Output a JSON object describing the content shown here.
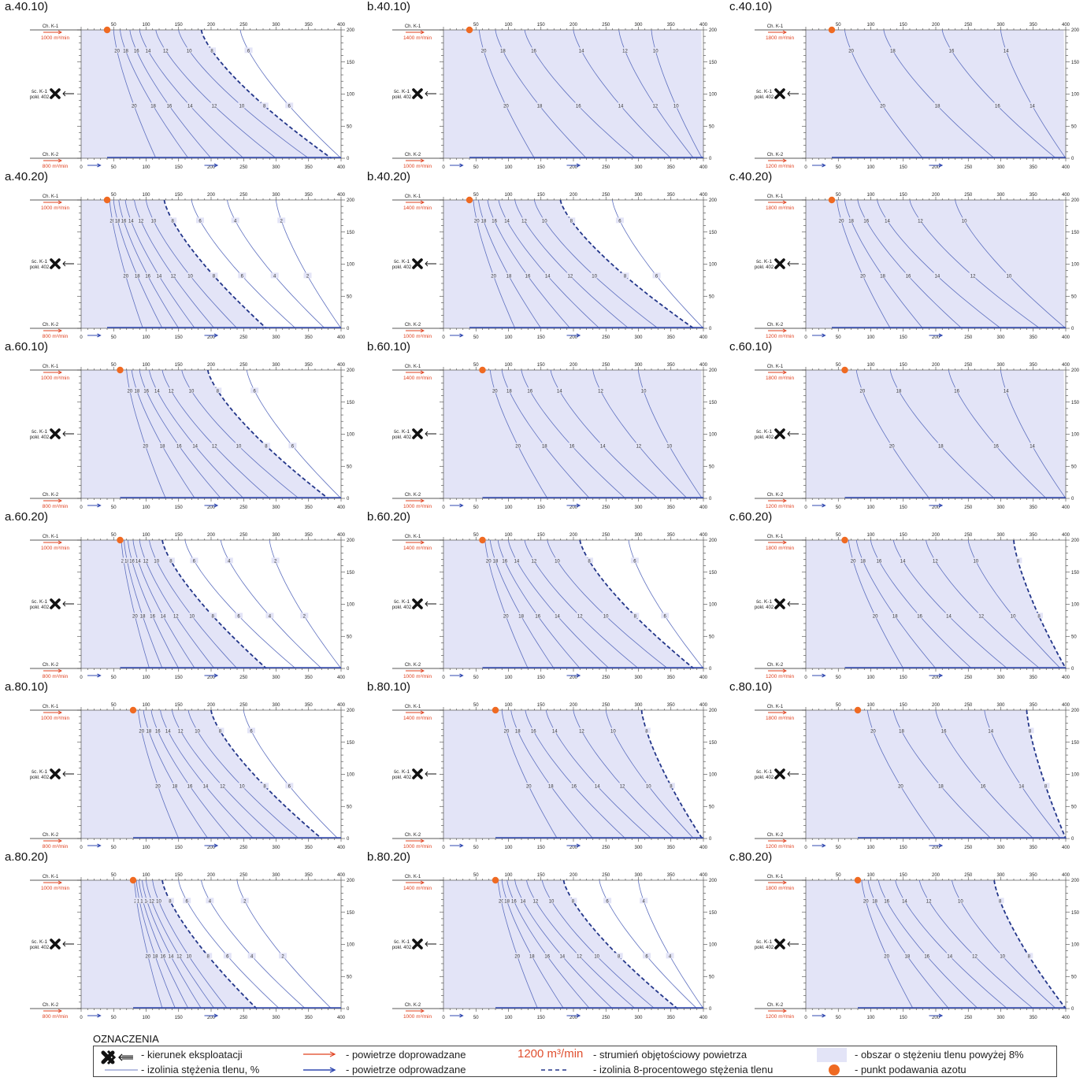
{
  "labels": {
    "ch_k1": "Ch. K-1",
    "ch_k2": "Ch. K-2",
    "wall_line1": "śc. K-1",
    "wall_line2": "pokł. 402",
    "flow_unit": "m³/min"
  },
  "chart_data": [
    {
      "id": "a.40.10",
      "type": "contour",
      "title": "a.40.10)",
      "inflow": 1000,
      "outflow": 800,
      "injection_x": 40,
      "xlim": [
        0,
        400
      ],
      "ylim": [
        0,
        200
      ],
      "isolines": [
        {
          "v": 20,
          "x_top": 50,
          "x_bot": 115
        },
        {
          "v": 18,
          "x_top": 60,
          "x_bot": 165
        },
        {
          "v": 16,
          "x_top": 75,
          "x_bot": 200
        },
        {
          "v": 14,
          "x_top": 90,
          "x_bot": 250
        },
        {
          "v": 12,
          "x_top": 115,
          "x_bot": 300
        },
        {
          "v": 10,
          "x_top": 150,
          "x_bot": 350
        },
        {
          "v": 8,
          "x_top": 185,
          "x_bot": 385,
          "dashed": true
        },
        {
          "v": 6,
          "x_top": 245,
          "x_bot": 400
        }
      ]
    },
    {
      "id": "b.40.10",
      "type": "contour",
      "title": "b.40.10)",
      "inflow": 1400,
      "outflow": 1000,
      "injection_x": 40,
      "xlim": [
        0,
        400
      ],
      "ylim": [
        0,
        200
      ],
      "isolines": [
        {
          "v": 20,
          "x_top": 55,
          "x_bot": 140
        },
        {
          "v": 18,
          "x_top": 80,
          "x_bot": 220
        },
        {
          "v": 16,
          "x_top": 125,
          "x_bot": 295
        },
        {
          "v": 14,
          "x_top": 200,
          "x_bot": 350
        },
        {
          "v": 12,
          "x_top": 270,
          "x_bot": 385
        },
        {
          "v": 10,
          "x_top": 320,
          "x_bot": 398
        }
      ]
    },
    {
      "id": "c.40.10",
      "type": "contour",
      "title": "c.40.10)",
      "inflow": 1800,
      "outflow": 1200,
      "injection_x": 40,
      "xlim": [
        0,
        400
      ],
      "ylim": [
        0,
        200
      ],
      "isolines": [
        {
          "v": 20,
          "x_top": 60,
          "x_bot": 180
        },
        {
          "v": 18,
          "x_top": 120,
          "x_bot": 290
        },
        {
          "v": 16,
          "x_top": 210,
          "x_bot": 385
        },
        {
          "v": 14,
          "x_top": 300,
          "x_bot": 400
        }
      ]
    },
    {
      "id": "a.40.20",
      "type": "contour",
      "title": "a.40.20)",
      "inflow": 1000,
      "outflow": 800,
      "injection_x": 40,
      "xlim": [
        0,
        400
      ],
      "ylim": [
        0,
        200
      ],
      "isolines": [
        {
          "v": 20,
          "x_top": 44,
          "x_bot": 95
        },
        {
          "v": 18,
          "x_top": 50,
          "x_bot": 125
        },
        {
          "v": 16,
          "x_top": 58,
          "x_bot": 150
        },
        {
          "v": 14,
          "x_top": 68,
          "x_bot": 175
        },
        {
          "v": 12,
          "x_top": 82,
          "x_bot": 205
        },
        {
          "v": 10,
          "x_top": 100,
          "x_bot": 240
        },
        {
          "v": 8,
          "x_top": 128,
          "x_bot": 285,
          "dashed": true
        },
        {
          "v": 6,
          "x_top": 170,
          "x_bot": 330
        },
        {
          "v": 4,
          "x_top": 225,
          "x_bot": 375
        },
        {
          "v": 2,
          "x_top": 300,
          "x_bot": 400
        }
      ]
    },
    {
      "id": "b.40.20",
      "type": "contour",
      "title": "b.40.20)",
      "inflow": 1400,
      "outflow": 1000,
      "injection_x": 40,
      "xlim": [
        0,
        400
      ],
      "ylim": [
        0,
        200
      ],
      "isolines": [
        {
          "v": 20,
          "x_top": 46,
          "x_bot": 110
        },
        {
          "v": 18,
          "x_top": 54,
          "x_bot": 150
        },
        {
          "v": 16,
          "x_top": 68,
          "x_bot": 195
        },
        {
          "v": 14,
          "x_top": 85,
          "x_bot": 240
        },
        {
          "v": 12,
          "x_top": 110,
          "x_bot": 285
        },
        {
          "v": 10,
          "x_top": 140,
          "x_bot": 330
        },
        {
          "v": 8,
          "x_top": 180,
          "x_bot": 385,
          "dashed": true
        },
        {
          "v": 6,
          "x_top": 260,
          "x_bot": 400
        }
      ]
    },
    {
      "id": "c.40.20",
      "type": "contour",
      "title": "c.40.20)",
      "inflow": 1800,
      "outflow": 1200,
      "injection_x": 40,
      "xlim": [
        0,
        400
      ],
      "ylim": [
        0,
        200
      ],
      "isolines": [
        {
          "v": 20,
          "x_top": 48,
          "x_bot": 130
        },
        {
          "v": 18,
          "x_top": 60,
          "x_bot": 180
        },
        {
          "v": 16,
          "x_top": 80,
          "x_bot": 240
        },
        {
          "v": 14,
          "x_top": 110,
          "x_bot": 300
        },
        {
          "v": 12,
          "x_top": 160,
          "x_bot": 360
        },
        {
          "v": 10,
          "x_top": 230,
          "x_bot": 400
        }
      ]
    },
    {
      "id": "a.60.10",
      "type": "contour",
      "title": "a.60.10)",
      "inflow": 1000,
      "outflow": 800,
      "injection_x": 60,
      "xlim": [
        0,
        400
      ],
      "ylim": [
        0,
        200
      ],
      "isolines": [
        {
          "v": 20,
          "x_top": 70,
          "x_bot": 130
        },
        {
          "v": 18,
          "x_top": 78,
          "x_bot": 175
        },
        {
          "v": 16,
          "x_top": 90,
          "x_bot": 215
        },
        {
          "v": 14,
          "x_top": 105,
          "x_bot": 250
        },
        {
          "v": 12,
          "x_top": 125,
          "x_bot": 290
        },
        {
          "v": 10,
          "x_top": 155,
          "x_bot": 335
        },
        {
          "v": 8,
          "x_top": 195,
          "x_bot": 380,
          "dashed": true
        },
        {
          "v": 6,
          "x_top": 255,
          "x_bot": 400
        }
      ]
    },
    {
      "id": "b.60.10",
      "type": "contour",
      "title": "b.60.10)",
      "inflow": 1400,
      "outflow": 1000,
      "injection_x": 60,
      "xlim": [
        0,
        400
      ],
      "ylim": [
        0,
        200
      ],
      "isolines": [
        {
          "v": 20,
          "x_top": 72,
          "x_bot": 160
        },
        {
          "v": 18,
          "x_top": 90,
          "x_bot": 225
        },
        {
          "v": 16,
          "x_top": 120,
          "x_bot": 280
        },
        {
          "v": 14,
          "x_top": 165,
          "x_bot": 330
        },
        {
          "v": 12,
          "x_top": 230,
          "x_bot": 375
        },
        {
          "v": 10,
          "x_top": 300,
          "x_bot": 398
        }
      ]
    },
    {
      "id": "c.60.10",
      "type": "contour",
      "title": "c.60.10)",
      "inflow": 1800,
      "outflow": 1200,
      "injection_x": 60,
      "xlim": [
        0,
        400
      ],
      "ylim": [
        0,
        200
      ],
      "isolines": [
        {
          "v": 20,
          "x_top": 78,
          "x_bot": 190
        },
        {
          "v": 18,
          "x_top": 130,
          "x_bot": 290
        },
        {
          "v": 16,
          "x_top": 220,
          "x_bot": 370
        },
        {
          "v": 14,
          "x_top": 300,
          "x_bot": 400
        }
      ]
    },
    {
      "id": "a.60.20",
      "type": "contour",
      "title": "a.60.20)",
      "inflow": 1000,
      "outflow": 800,
      "injection_x": 60,
      "xlim": [
        0,
        400
      ],
      "ylim": [
        0,
        200
      ],
      "isolines": [
        {
          "v": 20,
          "x_top": 62,
          "x_bot": 105
        },
        {
          "v": 18,
          "x_top": 66,
          "x_bot": 125
        },
        {
          "v": 16,
          "x_top": 72,
          "x_bot": 150
        },
        {
          "v": 14,
          "x_top": 80,
          "x_bot": 175
        },
        {
          "v": 12,
          "x_top": 90,
          "x_bot": 205
        },
        {
          "v": 10,
          "x_top": 105,
          "x_bot": 240
        },
        {
          "v": 8,
          "x_top": 125,
          "x_bot": 285,
          "dashed": true
        },
        {
          "v": 6,
          "x_top": 160,
          "x_bot": 330
        },
        {
          "v": 4,
          "x_top": 215,
          "x_bot": 370
        },
        {
          "v": 2,
          "x_top": 290,
          "x_bot": 400
        }
      ]
    },
    {
      "id": "b.60.20",
      "type": "contour",
      "title": "b.60.20)",
      "inflow": 1400,
      "outflow": 1000,
      "injection_x": 60,
      "xlim": [
        0,
        400
      ],
      "ylim": [
        0,
        200
      ],
      "isolines": [
        {
          "v": 20,
          "x_top": 64,
          "x_bot": 130
        },
        {
          "v": 18,
          "x_top": 72,
          "x_bot": 170
        },
        {
          "v": 16,
          "x_top": 84,
          "x_bot": 210
        },
        {
          "v": 14,
          "x_top": 100,
          "x_bot": 255
        },
        {
          "v": 12,
          "x_top": 125,
          "x_bot": 300
        },
        {
          "v": 10,
          "x_top": 160,
          "x_bot": 345
        },
        {
          "v": 8,
          "x_top": 210,
          "x_bot": 385,
          "dashed": true
        },
        {
          "v": 6,
          "x_top": 285,
          "x_bot": 400
        }
      ]
    },
    {
      "id": "c.60.20",
      "type": "contour",
      "title": "c.60.20)",
      "inflow": 1800,
      "outflow": 1200,
      "injection_x": 60,
      "xlim": [
        0,
        400
      ],
      "ylim": [
        0,
        200
      ],
      "isolines": [
        {
          "v": 20,
          "x_top": 66,
          "x_bot": 150
        },
        {
          "v": 18,
          "x_top": 78,
          "x_bot": 200
        },
        {
          "v": 16,
          "x_top": 100,
          "x_bot": 255
        },
        {
          "v": 14,
          "x_top": 135,
          "x_bot": 310
        },
        {
          "v": 12,
          "x_top": 185,
          "x_bot": 360
        },
        {
          "v": 10,
          "x_top": 250,
          "x_bot": 392
        },
        {
          "v": 8,
          "x_top": 320,
          "x_bot": 400,
          "dashed": true
        }
      ]
    },
    {
      "id": "a.80.10",
      "type": "contour",
      "title": "a.80.10)",
      "inflow": 1000,
      "outflow": 800,
      "injection_x": 80,
      "xlim": [
        0,
        400
      ],
      "ylim": [
        0,
        200
      ],
      "isolines": [
        {
          "v": 20,
          "x_top": 88,
          "x_bot": 150
        },
        {
          "v": 18,
          "x_top": 96,
          "x_bot": 195
        },
        {
          "v": 16,
          "x_top": 108,
          "x_bot": 230
        },
        {
          "v": 14,
          "x_top": 122,
          "x_bot": 265
        },
        {
          "v": 12,
          "x_top": 140,
          "x_bot": 300
        },
        {
          "v": 10,
          "x_top": 165,
          "x_bot": 335
        },
        {
          "v": 8,
          "x_top": 200,
          "x_bot": 370,
          "dashed": true
        },
        {
          "v": 6,
          "x_top": 250,
          "x_bot": 395
        }
      ]
    },
    {
      "id": "b.80.10",
      "type": "contour",
      "title": "b.80.10)",
      "inflow": 1400,
      "outflow": 1000,
      "injection_x": 80,
      "xlim": [
        0,
        400
      ],
      "ylim": [
        0,
        200
      ],
      "isolines": [
        {
          "v": 20,
          "x_top": 90,
          "x_bot": 175
        },
        {
          "v": 18,
          "x_top": 104,
          "x_bot": 230
        },
        {
          "v": 16,
          "x_top": 126,
          "x_bot": 280
        },
        {
          "v": 14,
          "x_top": 158,
          "x_bot": 320
        },
        {
          "v": 12,
          "x_top": 200,
          "x_bot": 355
        },
        {
          "v": 10,
          "x_top": 250,
          "x_bot": 385
        },
        {
          "v": 8,
          "x_top": 305,
          "x_bot": 398,
          "dashed": true
        }
      ]
    },
    {
      "id": "c.80.10",
      "type": "contour",
      "title": "c.80.10)",
      "inflow": 1800,
      "outflow": 1200,
      "injection_x": 80,
      "xlim": [
        0,
        400
      ],
      "ylim": [
        0,
        200
      ],
      "isolines": [
        {
          "v": 20,
          "x_top": 95,
          "x_bot": 200
        },
        {
          "v": 18,
          "x_top": 135,
          "x_bot": 285
        },
        {
          "v": 16,
          "x_top": 200,
          "x_bot": 350
        },
        {
          "v": 14,
          "x_top": 275,
          "x_bot": 392
        },
        {
          "v": 8,
          "x_top": 340,
          "x_bot": 400,
          "dashed": true
        }
      ]
    },
    {
      "id": "a.80.20",
      "type": "contour",
      "title": "a.80.20)",
      "inflow": 1000,
      "outflow": 800,
      "injection_x": 80,
      "xlim": [
        0,
        400
      ],
      "ylim": [
        0,
        200
      ],
      "isolines": [
        {
          "v": 20,
          "x_top": 82,
          "x_bot": 125
        },
        {
          "v": 18,
          "x_top": 85,
          "x_bot": 145
        },
        {
          "v": 16,
          "x_top": 89,
          "x_bot": 165
        },
        {
          "v": 14,
          "x_top": 94,
          "x_bot": 185
        },
        {
          "v": 12,
          "x_top": 100,
          "x_bot": 205
        },
        {
          "v": 10,
          "x_top": 110,
          "x_bot": 225
        },
        {
          "v": 8,
          "x_top": 125,
          "x_bot": 270,
          "dashed": true
        },
        {
          "v": 6,
          "x_top": 150,
          "x_bot": 305
        },
        {
          "v": 4,
          "x_top": 185,
          "x_bot": 345
        },
        {
          "v": 2,
          "x_top": 240,
          "x_bot": 385
        }
      ]
    },
    {
      "id": "b.80.20",
      "type": "contour",
      "title": "b.80.20)",
      "inflow": 1400,
      "outflow": 1000,
      "injection_x": 80,
      "xlim": [
        0,
        400
      ],
      "ylim": [
        0,
        200
      ],
      "isolines": [
        {
          "v": 20,
          "x_top": 84,
          "x_bot": 145
        },
        {
          "v": 18,
          "x_top": 90,
          "x_bot": 185
        },
        {
          "v": 16,
          "x_top": 98,
          "x_bot": 225
        },
        {
          "v": 14,
          "x_top": 110,
          "x_bot": 260
        },
        {
          "v": 12,
          "x_top": 128,
          "x_bot": 295
        },
        {
          "v": 10,
          "x_top": 152,
          "x_bot": 325
        },
        {
          "v": 8,
          "x_top": 185,
          "x_bot": 360,
          "dashed": true
        },
        {
          "v": 6,
          "x_top": 240,
          "x_bot": 390
        },
        {
          "v": 4,
          "x_top": 300,
          "x_bot": 400
        }
      ]
    },
    {
      "id": "c.80.20",
      "type": "contour",
      "title": "c.80.20)",
      "inflow": 1800,
      "outflow": 1200,
      "injection_x": 80,
      "xlim": [
        0,
        400
      ],
      "ylim": [
        0,
        200
      ],
      "isolines": [
        {
          "v": 20,
          "x_top": 86,
          "x_bot": 165
        },
        {
          "v": 18,
          "x_top": 96,
          "x_bot": 220
        },
        {
          "v": 16,
          "x_top": 112,
          "x_bot": 265
        },
        {
          "v": 14,
          "x_top": 138,
          "x_bot": 310
        },
        {
          "v": 12,
          "x_top": 175,
          "x_bot": 350
        },
        {
          "v": 10,
          "x_top": 225,
          "x_bot": 385
        },
        {
          "v": 8,
          "x_top": 290,
          "x_bot": 400,
          "dashed": true
        }
      ]
    }
  ],
  "legend": {
    "title": "OZNACZENIA",
    "mining_direction": "- kierunek eksploatacji",
    "oxygen_isoline": "- izolinia stężenia tlenu, %",
    "air_supplied": "- powietrze doprowadzane",
    "air_exhausted": "- powietrze odprowadzane",
    "flow_example": "1200 m³/min",
    "flow_desc": "- strumień objętościowy powietrza",
    "isoline_8_desc": "- izolinia 8-procentowego stężenia tlenu",
    "area_desc": "- obszar o stężeniu tlenu powyżej 8%",
    "nitrogen_point_desc": "- punkt podawania azotu",
    "colors": {
      "isoline": "#5d6fbf",
      "isoline_8": "#23368a",
      "air_in": "#e0401e",
      "air_out": "#3048b0",
      "area_fill": "#e3e4f7",
      "nitrogen_point": "#ef6a22"
    }
  }
}
